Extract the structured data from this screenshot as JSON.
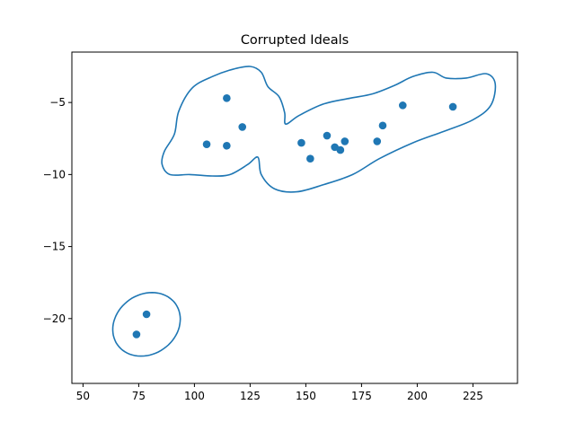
{
  "chart_data": {
    "type": "scatter",
    "title": "Corrupted Ideals",
    "xlabel": "",
    "ylabel": "",
    "xlim": [
      45,
      245
    ],
    "ylim": [
      -24.5,
      -1.5
    ],
    "xticks": [
      50,
      75,
      100,
      125,
      150,
      175,
      200,
      225
    ],
    "yticks": [
      -5,
      -10,
      -15,
      -20
    ],
    "grid": false,
    "point_color": "#1f77b4",
    "outline_color": "#1f77b4",
    "points": [
      {
        "x": 74,
        "y": -21.1
      },
      {
        "x": 78.5,
        "y": -19.7
      },
      {
        "x": 105.5,
        "y": -7.9
      },
      {
        "x": 114.5,
        "y": -4.7
      },
      {
        "x": 114.5,
        "y": -8.0
      },
      {
        "x": 121.5,
        "y": -6.7
      },
      {
        "x": 148,
        "y": -7.8
      },
      {
        "x": 152,
        "y": -8.9
      },
      {
        "x": 159.5,
        "y": -7.3
      },
      {
        "x": 163,
        "y": -8.1
      },
      {
        "x": 165.5,
        "y": -8.3
      },
      {
        "x": 167.5,
        "y": -7.7
      },
      {
        "x": 182,
        "y": -7.7
      },
      {
        "x": 184.5,
        "y": -6.6
      },
      {
        "x": 193.5,
        "y": -5.2
      },
      {
        "x": 216,
        "y": -5.3
      }
    ],
    "outlines": [
      {
        "shape": "ellipse",
        "cx": 78.5,
        "cy": -20.4,
        "rx": 29,
        "ry": 2.3,
        "rotation_deg": -35
      },
      {
        "shape": "closed-curve",
        "points": [
          [
            93,
            -5.6
          ],
          [
            99,
            -4.0
          ],
          [
            108,
            -3.2
          ],
          [
            117,
            -2.7
          ],
          [
            125,
            -2.5
          ],
          [
            130,
            -2.9
          ],
          [
            133,
            -3.9
          ],
          [
            138,
            -4.6
          ],
          [
            140.5,
            -5.7
          ],
          [
            141,
            -6.5
          ],
          [
            147,
            -5.9
          ],
          [
            158,
            -5.1
          ],
          [
            170,
            -4.7
          ],
          [
            180,
            -4.4
          ],
          [
            190,
            -3.8
          ],
          [
            198,
            -3.2
          ],
          [
            207,
            -2.9
          ],
          [
            213,
            -3.3
          ],
          [
            222,
            -3.3
          ],
          [
            231,
            -3.0
          ],
          [
            235,
            -3.7
          ],
          [
            233,
            -5.2
          ],
          [
            225,
            -6.2
          ],
          [
            212,
            -7.0
          ],
          [
            198,
            -7.8
          ],
          [
            183,
            -8.9
          ],
          [
            171,
            -10.0
          ],
          [
            158,
            -10.7
          ],
          [
            146,
            -11.2
          ],
          [
            136,
            -11.0
          ],
          [
            130,
            -10.0
          ],
          [
            128.5,
            -8.8
          ],
          [
            124,
            -9.3
          ],
          [
            116,
            -10.0
          ],
          [
            108,
            -10.1
          ],
          [
            98,
            -10.0
          ],
          [
            89,
            -10.0
          ],
          [
            85.5,
            -9.3
          ],
          [
            86.5,
            -8.4
          ],
          [
            91,
            -7.2
          ]
        ]
      }
    ]
  }
}
